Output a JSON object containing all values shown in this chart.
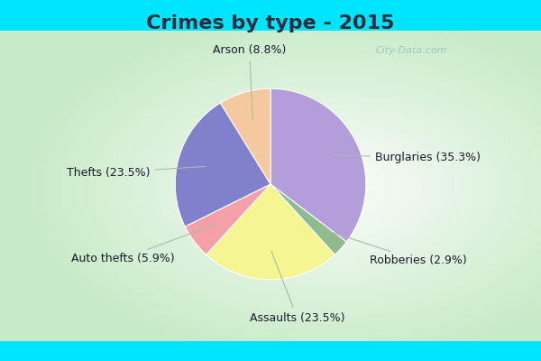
{
  "title": "Crimes by type - 2015",
  "labels": [
    "Burglaries",
    "Robberies",
    "Assaults",
    "Auto thefts",
    "Thefts",
    "Arson"
  ],
  "percentages": [
    35.3,
    2.9,
    23.5,
    5.9,
    23.5,
    8.8
  ],
  "colors": [
    "#b39ddb",
    "#8fbb8f",
    "#f5f591",
    "#f4a0a8",
    "#8080cc",
    "#f5c9a0"
  ],
  "label_texts": [
    "Burglaries (35.3%)",
    "Robberies (2.9%)",
    "Assaults (23.5%)",
    "Auto thefts (5.9%)",
    "Thefts (23.5%)",
    "Arson (8.8%)"
  ],
  "background_cyan": "#00e5ff",
  "background_inner": "#d8f0d8",
  "title_fontsize": 16,
  "label_fontsize": 9,
  "title_color": "#2a2a3a",
  "watermark": "City-Data.com",
  "border_thickness": 0.05
}
